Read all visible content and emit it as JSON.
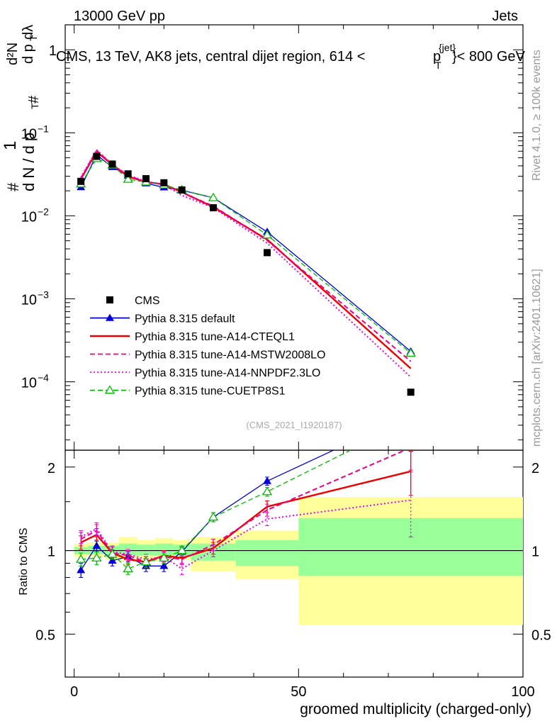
{
  "header": {
    "left": "13000 GeV pp",
    "right": "Jets"
  },
  "side_labels": {
    "rivet": "Rivet 4.1.0, ≥ 100k events",
    "mcplots": "mcplots.cern.ch [arXiv:2401.10621]"
  },
  "chart_data": {
    "type": "line",
    "title": "CMS, 13 TeV, AK8 jets, central dijet region, 614 < pT^jet < 800 GeV",
    "title_parts": {
      "prefix": "CMS, 13 TeV, AK8 jets, central dijet region, 614 <",
      "p": "p",
      "sub": "T",
      "sup": "{jet}",
      "suffix": "}< 800 GeV"
    },
    "analysis_tag": "(CMS_2021_I1920187)",
    "xlabel": "groomed multiplicity (charged-only)",
    "ylabel_main": "1/dN/dpT · d²N/dpT dλ",
    "ylabel_parts": {
      "one": "1",
      "hash": "#",
      "num": "d²N",
      "den1": "d N / d p",
      "den2": "d p",
      "t": "T",
      "dl": "dλ"
    },
    "ylabel_ratio": "Ratio to CMS",
    "xlim": [
      -2,
      100
    ],
    "ylim_main": [
      1.5e-05,
      2
    ],
    "ylim_ratio": [
      0.35,
      2.3
    ],
    "x_ticks": [
      0,
      50,
      100
    ],
    "x_tick_labels": [
      "0",
      "50",
      "100"
    ],
    "y_ticks_main": [
      0.0001,
      0.001,
      0.01,
      0.1,
      1
    ],
    "y_tick_labels_main": [
      {
        "base": "10",
        "exp": "−4"
      },
      {
        "base": "10",
        "exp": "−3"
      },
      {
        "base": "10",
        "exp": "−2"
      },
      {
        "base": "10",
        "exp": "−1"
      },
      {
        "base": "1",
        "exp": ""
      }
    ],
    "y_ticks_ratio": [
      0.5,
      1,
      2
    ],
    "y_tick_labels_ratio": [
      "0.5",
      "1",
      "2"
    ],
    "bin_edges": [
      0,
      3,
      7,
      10,
      14,
      18,
      22,
      26,
      36,
      50,
      100
    ],
    "x": [
      1.5,
      5,
      8.5,
      12,
      16,
      20,
      24,
      31,
      43,
      75
    ],
    "cms": [
      0.026,
      0.052,
      0.042,
      0.032,
      0.028,
      0.025,
      0.0205,
      0.0125,
      0.0036,
      7.5e-05
    ],
    "band_green": [
      [
        0.97,
        1.03
      ],
      [
        0.97,
        1.04
      ],
      [
        0.96,
        1.04
      ],
      [
        0.96,
        1.06
      ],
      [
        0.96,
        1.05
      ],
      [
        0.96,
        1.06
      ],
      [
        0.96,
        1.05
      ],
      [
        0.92,
        1.06
      ],
      [
        0.88,
        1.09
      ],
      [
        0.81,
        1.31
      ]
    ],
    "band_yellow": [
      [
        0.95,
        1.06
      ],
      [
        0.95,
        1.07
      ],
      [
        0.93,
        1.07
      ],
      [
        0.92,
        1.12
      ],
      [
        0.93,
        1.09
      ],
      [
        0.92,
        1.11
      ],
      [
        0.93,
        1.09
      ],
      [
        0.84,
        1.12
      ],
      [
        0.79,
        1.18
      ],
      [
        0.54,
        1.56
      ]
    ],
    "series": [
      {
        "name": "Pythia 8.315 default",
        "color": "#0000dd",
        "style": "solid",
        "marker": "triangle-filled",
        "width": 1.3,
        "ratio": [
          0.85,
          1.04,
          0.92,
          0.95,
          0.88,
          0.88,
          0.99,
          1.32,
          1.78,
          3.1
        ],
        "err": [
          0.05,
          0.05,
          0.04,
          0.04,
          0.04,
          0.04,
          0.04,
          0.05,
          0.06,
          0.3
        ]
      },
      {
        "name": "Pythia 8.315 tune-A14-CTEQL1",
        "color": "#ee0000",
        "style": "solid",
        "marker": "none",
        "width": 2.4,
        "ratio": [
          1.07,
          1.14,
          0.98,
          0.93,
          0.91,
          0.96,
          0.94,
          1.02,
          1.44,
          1.93
        ],
        "err": [
          0.06,
          0.06,
          0.05,
          0.04,
          0.04,
          0.04,
          0.04,
          0.05,
          0.07,
          0.35
        ]
      },
      {
        "name": "Pythia 8.315 tune-A14-MSTW2008LO",
        "color": "#ee0088",
        "style": "dashed",
        "marker": "none",
        "width": 2.0,
        "ratio": [
          1.1,
          1.18,
          0.98,
          0.96,
          0.91,
          0.95,
          0.93,
          1.05,
          1.4,
          2.35
        ],
        "err": [
          0.06,
          0.06,
          0.05,
          0.04,
          0.04,
          0.04,
          0.04,
          0.05,
          0.07,
          0.4
        ]
      },
      {
        "name": "Pythia 8.315 tune-A14-NNPDF2.3LO",
        "color": "#ee00ee",
        "style": "dotted",
        "marker": "none",
        "width": 2.0,
        "ratio": [
          1.12,
          1.2,
          0.99,
          0.97,
          0.93,
          0.95,
          0.86,
          1.0,
          1.3,
          1.52
        ],
        "err": [
          0.06,
          0.06,
          0.05,
          0.04,
          0.04,
          0.04,
          0.04,
          0.05,
          0.07,
          0.4
        ]
      },
      {
        "name": "Pythia 8.315 tune-CUETP8S1",
        "color": "#00bb00",
        "style": "dashed",
        "marker": "triangle-open",
        "width": 1.3,
        "ratio": [
          0.93,
          0.94,
          0.97,
          0.86,
          0.91,
          0.94,
          1.0,
          1.32,
          1.63,
          2.95
        ],
        "err": [
          0.05,
          0.05,
          0.04,
          0.04,
          0.04,
          0.04,
          0.04,
          0.05,
          0.06,
          0.3
        ]
      }
    ],
    "legend": [
      {
        "label": "CMS",
        "color": "#000000",
        "style": "marker",
        "marker": "square"
      },
      {
        "label": "Pythia 8.315 default",
        "color": "#0000dd",
        "style": "solid",
        "marker": "triangle-filled"
      },
      {
        "label": "Pythia 8.315 tune-A14-CTEQL1",
        "color": "#ee0000",
        "style": "solid",
        "marker": "none"
      },
      {
        "label": "Pythia 8.315 tune-A14-MSTW2008LO",
        "color": "#ee0088",
        "style": "dashed",
        "marker": "none"
      },
      {
        "label": "Pythia 8.315 tune-A14-NNPDF2.3LO",
        "color": "#ee00ee",
        "style": "dotted",
        "marker": "none"
      },
      {
        "label": "Pythia 8.315 tune-CUETP8S1",
        "color": "#00bb00",
        "style": "dashed",
        "marker": "triangle-open"
      }
    ],
    "legend_position": "lower-left",
    "colors": {
      "band_green": "#99ff99",
      "band_yellow": "#ffff99",
      "axis": "#000000",
      "tag": "#aaaaaa",
      "side": "#999999"
    }
  }
}
